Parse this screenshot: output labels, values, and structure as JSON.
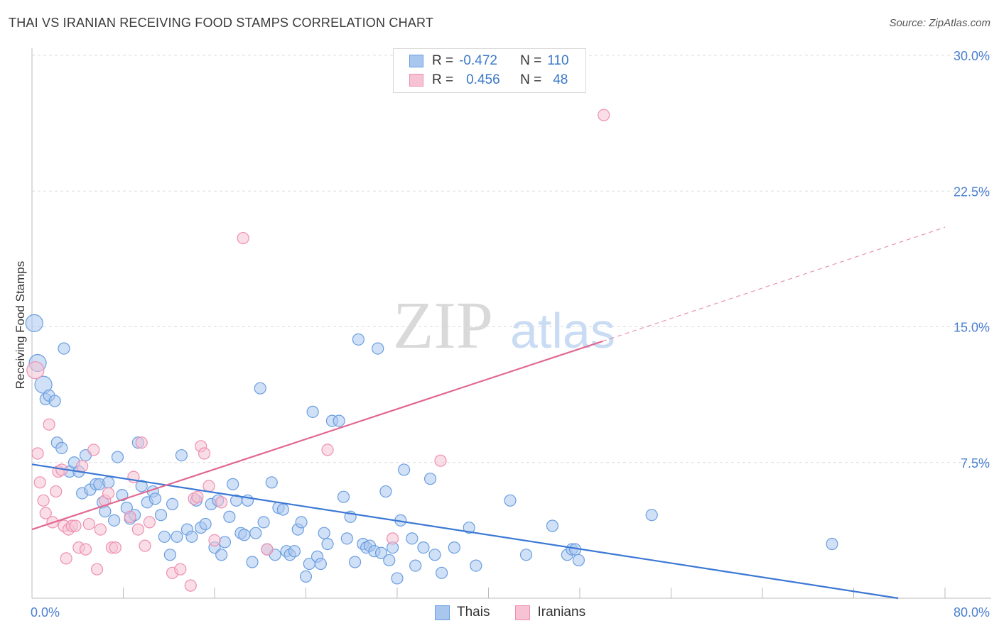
{
  "title": "THAI VS IRANIAN RECEIVING FOOD STAMPS CORRELATION CHART",
  "source": "Source: ZipAtlas.com",
  "watermark": {
    "zip": "ZIP",
    "atlas": "atlas"
  },
  "legend": [
    {
      "r_label": "R =",
      "r_value": "-0.472",
      "n_label": "N =",
      "n_value": "110"
    },
    {
      "r_label": "R =",
      "r_value": "0.456",
      "n_label": "N =",
      "n_value": "48"
    }
  ],
  "bottom_legend": [
    "Thais",
    "Iranians"
  ],
  "colors": {
    "thai": "#6a9ee0",
    "thai_fill": "#a9c6ef",
    "iranian": "#ee8fb0",
    "iranian_fill": "#f6c2d4",
    "thai_line": "#3b78d4",
    "iranian_line": "#e2688f",
    "tick": "#4a7fd0"
  },
  "chart_data": {
    "type": "scatter",
    "title": "THAI VS IRANIAN RECEIVING FOOD STAMPS CORRELATION CHART",
    "xlabel": "",
    "ylabel": "Receiving Food Stamps",
    "xlim": [
      0,
      80
    ],
    "ylim": [
      0,
      30
    ],
    "x_tick_labels": [
      "0.0%",
      "80.0%"
    ],
    "y_ticks": [
      7.5,
      15.0,
      22.5,
      30.0
    ],
    "y_tick_labels": [
      "7.5%",
      "15.0%",
      "22.5%",
      "30.0%"
    ],
    "grid": true,
    "legend_position": "top-center",
    "series": [
      {
        "name": "Thais",
        "r": -0.472,
        "n": 110,
        "trend": {
          "x": [
            0,
            80
          ],
          "y": [
            7.4,
            -0.4
          ]
        },
        "points": [
          [
            0.2,
            15.2
          ],
          [
            0.5,
            13.0
          ],
          [
            1.0,
            11.8
          ],
          [
            1.2,
            11.0
          ],
          [
            1.5,
            11.2
          ],
          [
            2.0,
            10.9
          ],
          [
            2.8,
            13.8
          ],
          [
            2.2,
            8.6
          ],
          [
            2.6,
            8.3
          ],
          [
            3.3,
            7.0
          ],
          [
            3.7,
            7.5
          ],
          [
            4.1,
            7.0
          ],
          [
            4.7,
            7.9
          ],
          [
            4.4,
            5.8
          ],
          [
            5.1,
            6.0
          ],
          [
            5.6,
            6.3
          ],
          [
            5.9,
            6.3
          ],
          [
            6.2,
            5.3
          ],
          [
            6.4,
            4.8
          ],
          [
            6.7,
            6.4
          ],
          [
            7.2,
            4.3
          ],
          [
            7.5,
            7.8
          ],
          [
            7.9,
            5.7
          ],
          [
            8.3,
            5.0
          ],
          [
            8.6,
            4.4
          ],
          [
            9.0,
            4.6
          ],
          [
            9.3,
            8.6
          ],
          [
            9.6,
            6.2
          ],
          [
            10.1,
            5.3
          ],
          [
            10.6,
            5.9
          ],
          [
            10.8,
            5.5
          ],
          [
            11.3,
            4.6
          ],
          [
            11.6,
            3.4
          ],
          [
            12.1,
            2.4
          ],
          [
            12.3,
            5.2
          ],
          [
            12.7,
            3.4
          ],
          [
            13.1,
            7.9
          ],
          [
            13.6,
            3.8
          ],
          [
            14.0,
            3.4
          ],
          [
            14.4,
            5.4
          ],
          [
            14.8,
            3.9
          ],
          [
            15.2,
            4.1
          ],
          [
            15.7,
            5.2
          ],
          [
            16.0,
            2.8
          ],
          [
            16.3,
            5.4
          ],
          [
            16.6,
            2.4
          ],
          [
            16.9,
            3.1
          ],
          [
            17.3,
            4.5
          ],
          [
            17.6,
            6.3
          ],
          [
            17.9,
            5.4
          ],
          [
            18.3,
            3.6
          ],
          [
            18.6,
            3.5
          ],
          [
            18.9,
            5.4
          ],
          [
            19.3,
            2.0
          ],
          [
            19.6,
            3.6
          ],
          [
            20.0,
            11.6
          ],
          [
            20.3,
            4.2
          ],
          [
            20.6,
            2.7
          ],
          [
            21.0,
            6.4
          ],
          [
            21.3,
            2.4
          ],
          [
            21.6,
            5.0
          ],
          [
            22.0,
            4.9
          ],
          [
            22.3,
            2.6
          ],
          [
            22.6,
            2.4
          ],
          [
            23.0,
            2.6
          ],
          [
            23.3,
            3.8
          ],
          [
            23.6,
            4.2
          ],
          [
            24.0,
            1.2
          ],
          [
            24.3,
            1.9
          ],
          [
            24.6,
            10.3
          ],
          [
            25.0,
            2.3
          ],
          [
            25.3,
            1.9
          ],
          [
            25.6,
            3.6
          ],
          [
            25.9,
            3.0
          ],
          [
            26.3,
            9.8
          ],
          [
            26.9,
            9.8
          ],
          [
            27.3,
            5.6
          ],
          [
            27.6,
            3.3
          ],
          [
            27.9,
            4.5
          ],
          [
            28.3,
            2.0
          ],
          [
            28.6,
            14.3
          ],
          [
            29.0,
            3.0
          ],
          [
            29.3,
            2.8
          ],
          [
            29.6,
            2.9
          ],
          [
            30.0,
            2.6
          ],
          [
            30.3,
            13.8
          ],
          [
            30.6,
            2.5
          ],
          [
            31.0,
            5.9
          ],
          [
            31.3,
            2.1
          ],
          [
            31.6,
            2.8
          ],
          [
            32.0,
            1.1
          ],
          [
            32.3,
            4.3
          ],
          [
            32.6,
            7.1
          ],
          [
            33.3,
            3.3
          ],
          [
            33.6,
            1.8
          ],
          [
            34.3,
            2.8
          ],
          [
            34.9,
            6.6
          ],
          [
            35.3,
            2.4
          ],
          [
            35.9,
            1.4
          ],
          [
            37.0,
            2.8
          ],
          [
            38.3,
            3.9
          ],
          [
            38.9,
            1.8
          ],
          [
            41.9,
            5.4
          ],
          [
            43.3,
            2.4
          ],
          [
            45.6,
            4.0
          ],
          [
            46.9,
            2.4
          ],
          [
            47.3,
            2.7
          ],
          [
            47.6,
            2.7
          ],
          [
            47.9,
            2.1
          ],
          [
            54.3,
            4.6
          ],
          [
            70.1,
            3.0
          ]
        ]
      },
      {
        "name": "Iranians",
        "r": 0.456,
        "n": 48,
        "trend": {
          "x": [
            0,
            50
          ],
          "y": [
            3.8,
            14.2
          ]
        },
        "trend_dashed": {
          "x": [
            50,
            80
          ],
          "y": [
            14.2,
            20.5
          ]
        },
        "points": [
          [
            0.3,
            12.6
          ],
          [
            0.5,
            8.0
          ],
          [
            0.7,
            6.4
          ],
          [
            1.0,
            5.4
          ],
          [
            1.2,
            4.7
          ],
          [
            1.5,
            9.6
          ],
          [
            1.8,
            4.2
          ],
          [
            2.1,
            5.9
          ],
          [
            2.3,
            7.0
          ],
          [
            2.6,
            7.1
          ],
          [
            2.8,
            4.0
          ],
          [
            3.0,
            2.2
          ],
          [
            3.2,
            3.8
          ],
          [
            3.5,
            4.0
          ],
          [
            3.8,
            4.0
          ],
          [
            4.1,
            2.8
          ],
          [
            4.4,
            7.3
          ],
          [
            4.7,
            2.7
          ],
          [
            5.0,
            4.1
          ],
          [
            5.4,
            8.2
          ],
          [
            5.7,
            1.6
          ],
          [
            6.0,
            3.8
          ],
          [
            6.4,
            5.4
          ],
          [
            6.7,
            5.8
          ],
          [
            7.0,
            2.8
          ],
          [
            7.3,
            2.8
          ],
          [
            8.6,
            4.5
          ],
          [
            8.9,
            6.7
          ],
          [
            9.3,
            3.8
          ],
          [
            9.6,
            8.6
          ],
          [
            9.9,
            2.9
          ],
          [
            10.3,
            4.2
          ],
          [
            12.3,
            1.4
          ],
          [
            13.0,
            1.6
          ],
          [
            13.9,
            0.7
          ],
          [
            14.2,
            5.5
          ],
          [
            14.5,
            5.6
          ],
          [
            14.8,
            8.4
          ],
          [
            15.1,
            8.0
          ],
          [
            15.5,
            6.2
          ],
          [
            16.0,
            3.2
          ],
          [
            16.6,
            5.3
          ],
          [
            18.5,
            19.9
          ],
          [
            20.6,
            2.7
          ],
          [
            25.9,
            8.2
          ],
          [
            31.6,
            3.3
          ],
          [
            35.8,
            7.6
          ],
          [
            50.1,
            26.7
          ]
        ]
      }
    ]
  }
}
